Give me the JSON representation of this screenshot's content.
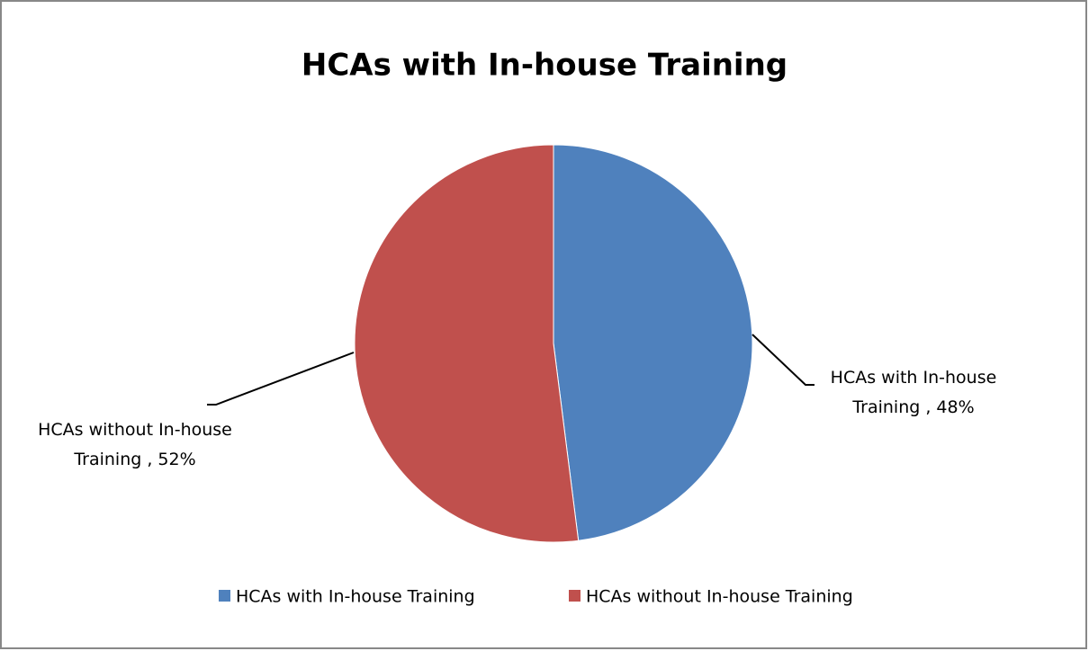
{
  "chart_data": {
    "type": "pie",
    "title": "HCAs with In-house Training",
    "categories": [
      "HCAs with In-house Training",
      "HCAs without In-house Training"
    ],
    "values": [
      48,
      52
    ],
    "value_labels": [
      "HCAs with In-house Training , 48%",
      "HCAs without In-house Training , 52%"
    ],
    "colors": [
      "#4f81bd",
      "#c0504d"
    ],
    "legend": "bottom"
  }
}
